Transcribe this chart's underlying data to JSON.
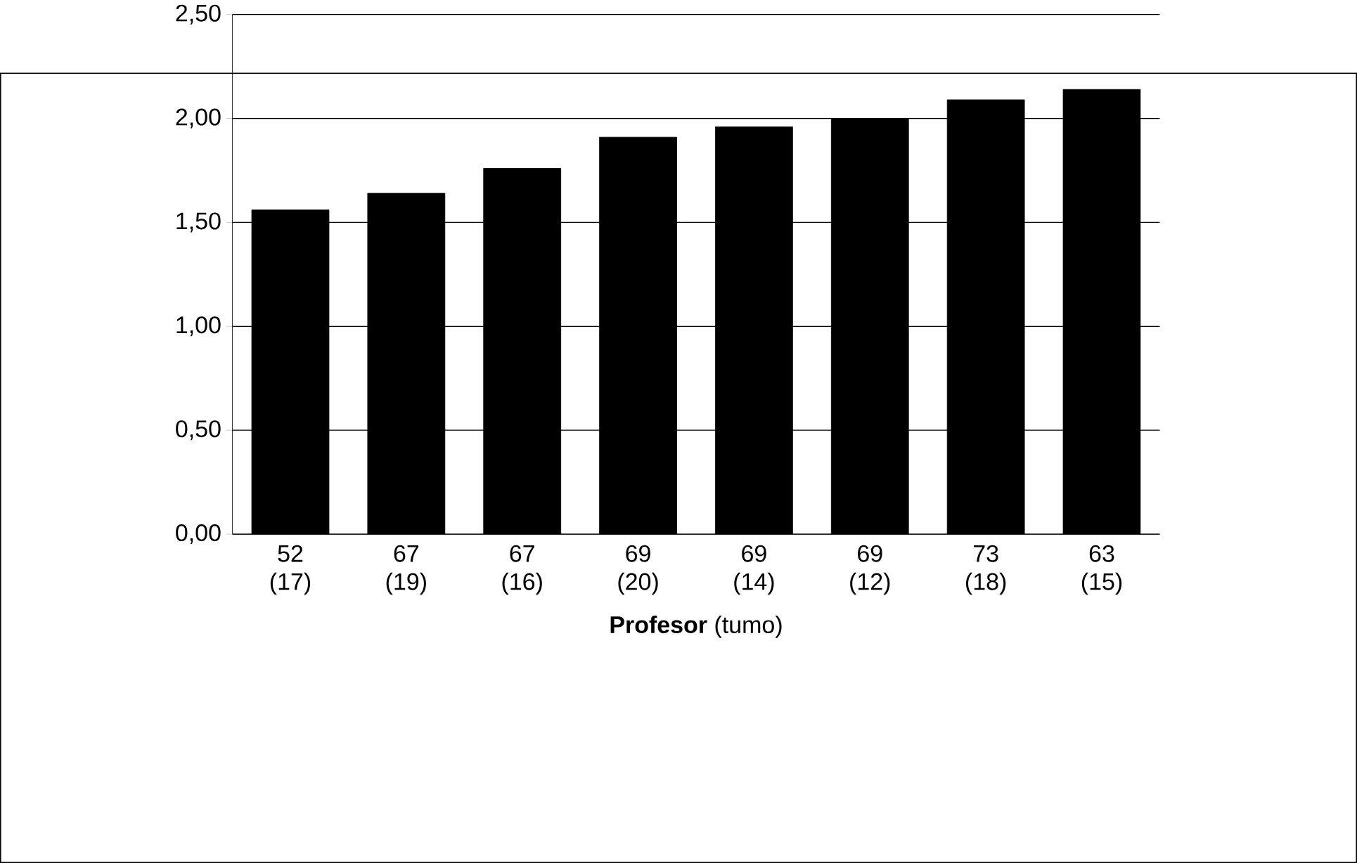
{
  "chart_data": {
    "type": "bar",
    "xlabel": "**Profesor** (tumo)",
    "categories": [
      "52 (17)",
      "67 (19)",
      "67 (16)",
      "69 (20)",
      "69 (14)",
      "69 (12)",
      "73 (18)",
      "63 (15)"
    ],
    "values": [
      1.56,
      1.64,
      1.76,
      1.91,
      1.96,
      2.0,
      2.09,
      2.14
    ],
    "color": "#000000",
    "ylim": [
      0,
      2.5
    ],
    "yticks": [
      {
        "value": 0,
        "label": "0,00"
      },
      {
        "value": 0.5,
        "label": "0,50"
      },
      {
        "value": 1,
        "label": "1,00"
      },
      {
        "value": 1.5,
        "label": "1,50"
      },
      {
        "value": 2,
        "label": "2,00"
      },
      {
        "value": 2.5,
        "label": "2,50"
      }
    ],
    "grid": "y"
  }
}
